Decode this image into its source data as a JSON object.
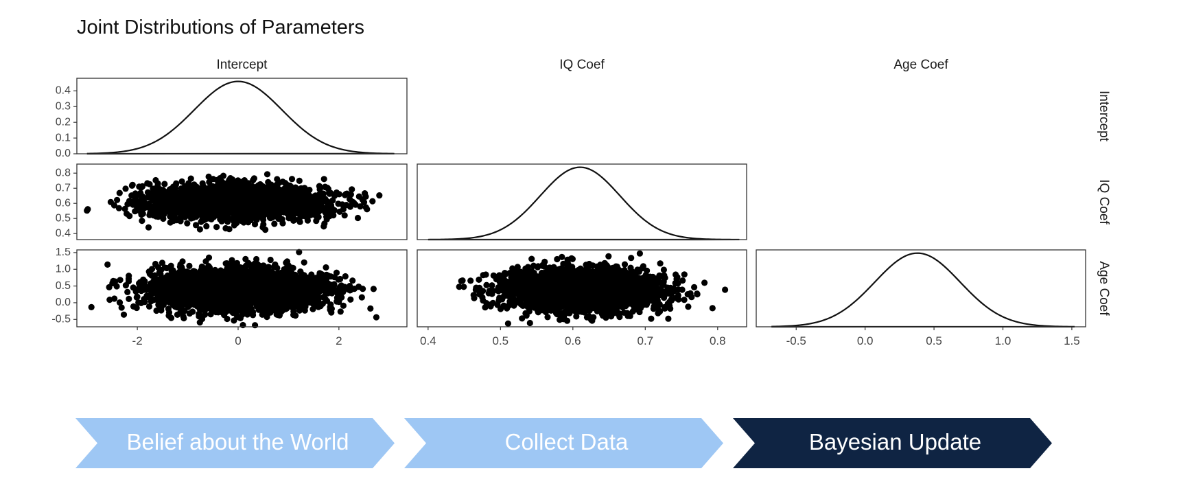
{
  "chart_data": {
    "type": "scatter",
    "title": "Joint Distributions of Parameters",
    "layout": "lower-triangular pairs matrix with density curves on the diagonal",
    "parameters": [
      {
        "name": "Intercept",
        "mean": 0.0,
        "sd": 0.87,
        "range": [
          -3.0,
          3.1
        ],
        "xlim": [
          -3.2,
          3.35
        ],
        "xticks": [
          -2,
          0,
          2
        ],
        "xtick_labels": [
          "-2",
          "0",
          "2"
        ],
        "ylim": [
          0.36,
          0.86
        ],
        "yticks": [
          0.4,
          0.5,
          0.6,
          0.7,
          0.8
        ],
        "ytick_labels": [
          "0.4",
          "0.5",
          "0.6",
          "0.7",
          "0.8"
        ]
      },
      {
        "name": "IQ Coef",
        "mean": 0.61,
        "sd": 0.055,
        "range": [
          0.4,
          0.83
        ],
        "xlim": [
          0.385,
          0.84
        ],
        "xticks": [
          0.4,
          0.5,
          0.6,
          0.7,
          0.8
        ],
        "xtick_labels": [
          "0.4",
          "0.5",
          "0.6",
          "0.7",
          "0.8"
        ],
        "ylim": [
          -0.72,
          1.58
        ],
        "yticks": [
          -0.5,
          0.0,
          0.5,
          1.0,
          1.5
        ],
        "ytick_labels": [
          "-0.5",
          "0.0",
          "0.5",
          "1.0",
          "1.5"
        ]
      },
      {
        "name": "Age Coef",
        "mean": 0.38,
        "sd": 0.31,
        "range": [
          -0.68,
          1.52
        ],
        "xlim": [
          -0.79,
          1.6
        ],
        "xticks": [
          -0.5,
          0.0,
          0.5,
          1.0,
          1.5
        ],
        "xtick_labels": [
          "-0.5",
          "0.0",
          "0.5",
          "1.0",
          "1.5"
        ]
      }
    ],
    "density_ylim": [
      0,
      0.48
    ],
    "density_yticks": [
      0.0,
      0.1,
      0.2,
      0.3,
      0.4
    ],
    "density_ytick_labels": [
      "0.0",
      "0.1",
      "0.2",
      "0.3",
      "0.4"
    ],
    "point_color": "#000000",
    "line_color": "#111111",
    "grid": false
  },
  "steps": [
    {
      "label": "Belief about the World",
      "fill": "#9ec7f4",
      "text_color": "#ffffff"
    },
    {
      "label": "Collect Data",
      "fill": "#9ec7f4",
      "text_color": "#ffffff"
    },
    {
      "label": "Bayesian Update",
      "fill": "#0f2443",
      "text_color": "#ffffff"
    }
  ]
}
